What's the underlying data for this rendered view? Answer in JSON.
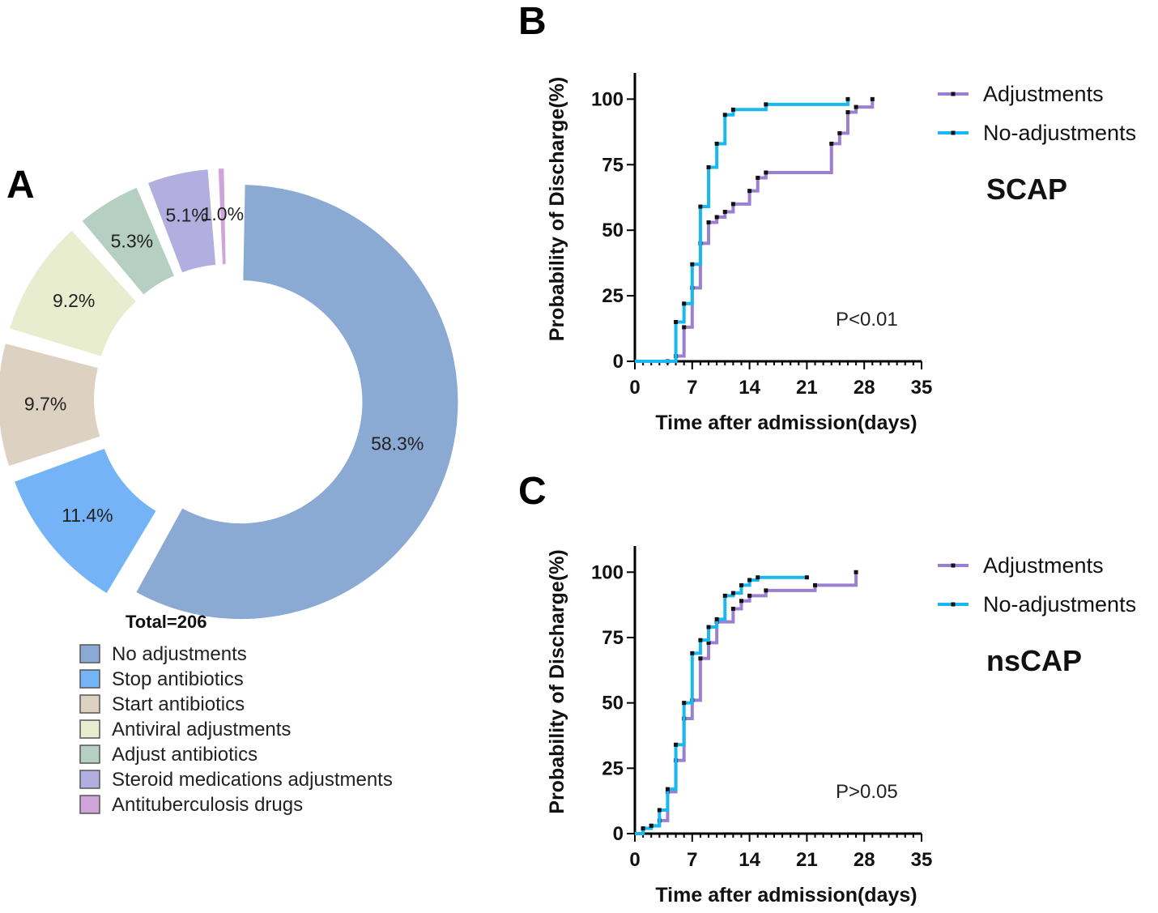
{
  "figure": {
    "panel_a_letter": "A",
    "panel_b_letter": "B",
    "panel_c_letter": "C"
  },
  "chart_data": [
    {
      "type": "pie",
      "subtype": "donut",
      "total_label": "Total=206",
      "categories": [
        "No adjustments",
        "Stop antibiotics",
        "Start antibiotics",
        "Antiviral adjustments",
        "Adjust antibiotics",
        "Steroid medications adjustments",
        "Antituberculosis drugs"
      ],
      "values": [
        58.3,
        11.4,
        9.7,
        9.2,
        5.3,
        5.1,
        1.0
      ],
      "labels": [
        "58.3%",
        "11.4%",
        "9.7%",
        "9.2%",
        "5.3%",
        "5.1%",
        "1.0%"
      ],
      "colors": [
        "#8aa9d3",
        "#74b3f6",
        "#ddd1c1",
        "#e8edcf",
        "#b6cfc3",
        "#b3aee0",
        "#cfa4d8"
      ],
      "legend_position": "bottom"
    },
    {
      "type": "line",
      "subtype": "step",
      "group_label": "SCAP",
      "annotation": "P<0.01",
      "xlabel": "Time after admission(days)",
      "ylabel": "Probability of Discharge(%)",
      "xlim": [
        0,
        35
      ],
      "ylim": [
        0,
        110
      ],
      "xticks": [
        0,
        7,
        14,
        21,
        28,
        35
      ],
      "yticks": [
        0,
        25,
        50,
        75,
        100
      ],
      "legend_position": "top-right",
      "series": [
        {
          "name": "Adjustments",
          "color": "#9b80d2",
          "x": [
            0,
            4,
            5,
            6,
            7,
            8,
            9,
            10,
            11,
            12,
            14,
            15,
            16,
            24,
            25,
            26,
            27,
            29
          ],
          "y": [
            0,
            0,
            2,
            13,
            28,
            45,
            53,
            55,
            57,
            60,
            65,
            70,
            72,
            83,
            87,
            95,
            97,
            100
          ]
        },
        {
          "name": "No-adjustments",
          "color": "#1ab8f0",
          "x": [
            0,
            5,
            6,
            7,
            8,
            9,
            10,
            11,
            12,
            16,
            26
          ],
          "y": [
            0,
            15,
            22,
            37,
            59,
            74,
            83,
            94,
            96,
            98,
            100
          ]
        }
      ]
    },
    {
      "type": "line",
      "subtype": "step",
      "group_label": "nsCAP",
      "annotation": "P>0.05",
      "xlabel": "Time after admission(days)",
      "ylabel": "Probability of Discharge(%)",
      "xlim": [
        0,
        35
      ],
      "ylim": [
        0,
        110
      ],
      "xticks": [
        0,
        7,
        14,
        21,
        28,
        35
      ],
      "yticks": [
        0,
        25,
        50,
        75,
        100
      ],
      "legend_position": "top-right",
      "series": [
        {
          "name": "Adjustments",
          "color": "#9b80d2",
          "x": [
            0,
            1,
            2,
            3,
            4,
            5,
            6,
            7,
            8,
            9,
            10,
            12,
            13,
            14,
            16,
            22,
            27
          ],
          "y": [
            0,
            2,
            3,
            5,
            16,
            28,
            44,
            51,
            67,
            73,
            81,
            86,
            89,
            91,
            93,
            95,
            100
          ]
        },
        {
          "name": "No-adjustments",
          "color": "#1ab8f0",
          "x": [
            0,
            1,
            2,
            3,
            4,
            5,
            6,
            7,
            8,
            9,
            10,
            11,
            12,
            13,
            14,
            15,
            21
          ],
          "y": [
            0,
            2,
            3,
            9,
            17,
            34,
            50,
            69,
            74,
            79,
            82,
            91,
            92,
            95,
            97,
            98,
            98
          ]
        }
      ]
    }
  ]
}
